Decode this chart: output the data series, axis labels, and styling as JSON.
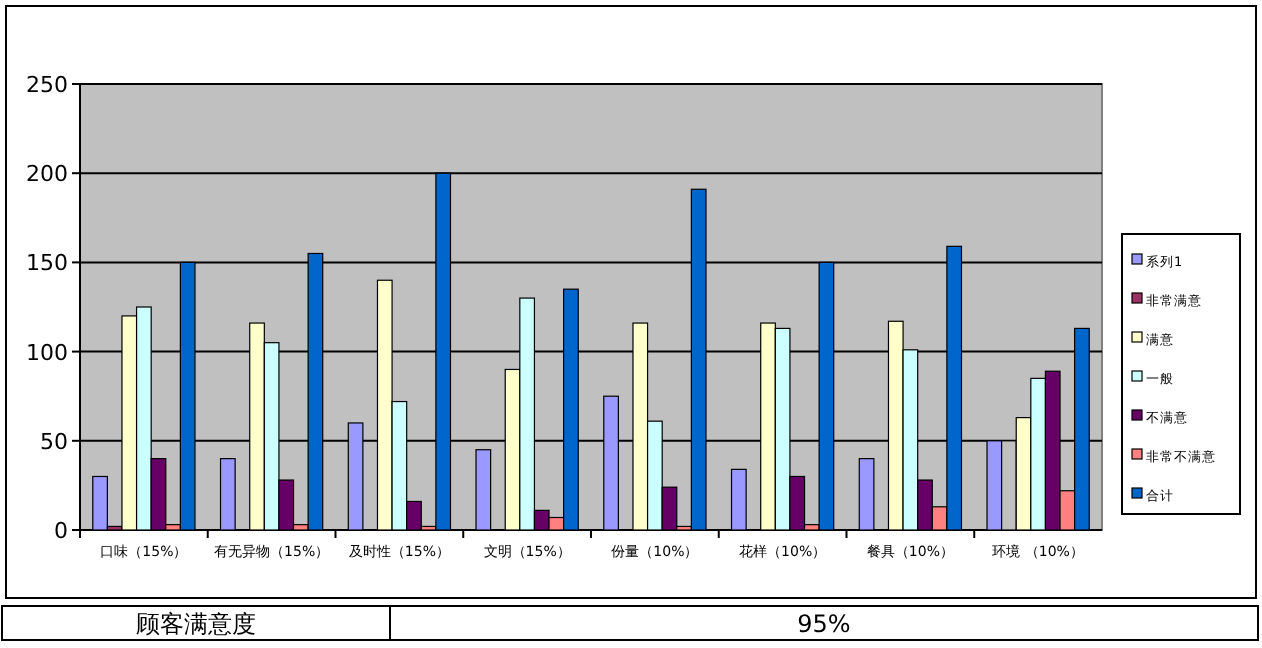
{
  "chart_data": {
    "type": "bar",
    "categories": [
      "口味（15%）",
      "有无异物（15%）",
      "及时性（15%）",
      "文明（15%）",
      "份量（10%）",
      "花样（10%）",
      "餐具（10%）",
      "环境    （10%）"
    ],
    "series": [
      {
        "name": "系列1",
        "color": "#9999ff",
        "values": [
          30,
          40,
          60,
          45,
          75,
          34,
          40,
          50
        ]
      },
      {
        "name": "非常满意",
        "color": "#993366",
        "colors": [
          "#993366",
          "#993366",
          "#993366",
          "#993366",
          "#993366",
          "#993366",
          "#993366",
          "#c0c0c0"
        ],
        "values": [
          2,
          0,
          0,
          0,
          0,
          0,
          0,
          50
        ]
      },
      {
        "name": "满意",
        "color": "#ffffcc",
        "values": [
          120,
          116,
          140,
          90,
          116,
          116,
          117,
          63
        ]
      },
      {
        "name": "一般",
        "color": "#ccffff",
        "values": [
          125,
          105,
          72,
          130,
          61,
          113,
          101,
          85
        ]
      },
      {
        "name": "不满意",
        "color": "#660066",
        "values": [
          40,
          28,
          16,
          11,
          24,
          30,
          28,
          89
        ]
      },
      {
        "name": "非常不满意",
        "color": "#ff8080",
        "values": [
          3,
          3,
          2,
          7,
          2,
          3,
          13,
          22
        ]
      },
      {
        "name": "合计",
        "color": "#0066cc",
        "values": [
          150,
          155,
          200,
          135,
          191,
          150,
          159,
          113
        ]
      }
    ],
    "ylim": [
      0,
      250
    ],
    "yticks": [
      0,
      50,
      100,
      150,
      200,
      250
    ],
    "grid": "y",
    "legend": "right",
    "annotations": [
      "顾客满意度",
      "95%"
    ]
  }
}
